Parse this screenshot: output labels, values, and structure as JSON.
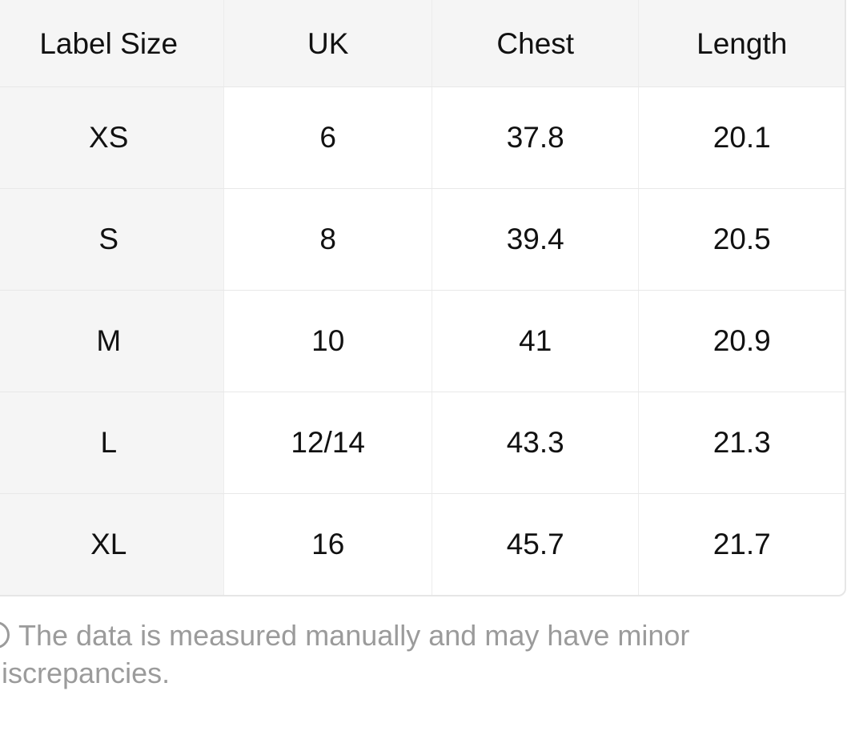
{
  "table": {
    "headers": [
      "Label Size",
      "UK",
      "Chest",
      "Length"
    ],
    "rows": [
      [
        "XS",
        "6",
        "37.8",
        "20.1"
      ],
      [
        "S",
        "8",
        "39.4",
        "20.5"
      ],
      [
        "M",
        "10",
        "41",
        "20.9"
      ],
      [
        "L",
        "12/14",
        "43.3",
        "21.3"
      ],
      [
        "XL",
        "16",
        "45.7",
        "21.7"
      ]
    ]
  },
  "note": {
    "icon": "info-icon",
    "line1": "The data is measured manually and may have minor",
    "line2": "discrepancies."
  }
}
